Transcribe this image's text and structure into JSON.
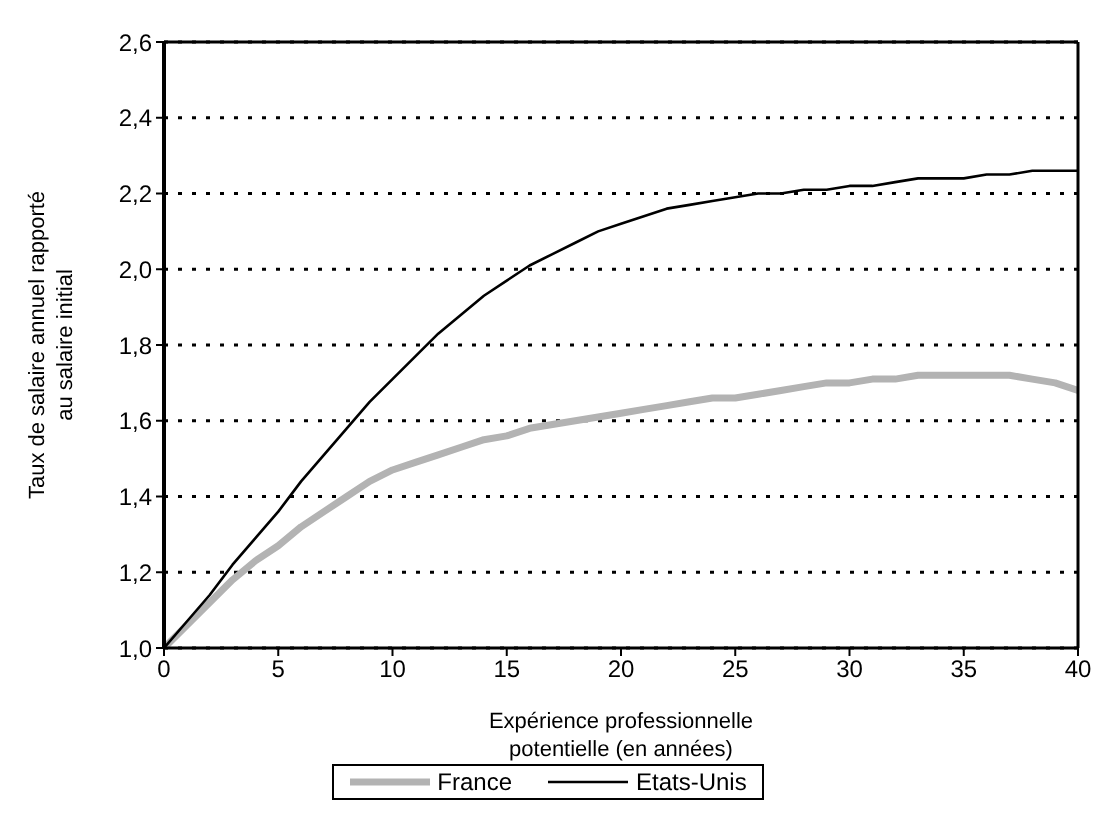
{
  "chart_data": {
    "type": "line",
    "xlabel": "Expérience professionnelle potentielle (en années)",
    "ylabel": "Taux de salaire annuel rapporté au salaire initial",
    "x": [
      0,
      1,
      2,
      3,
      4,
      5,
      6,
      7,
      8,
      9,
      10,
      11,
      12,
      13,
      14,
      15,
      16,
      17,
      18,
      19,
      20,
      21,
      22,
      23,
      24,
      25,
      26,
      27,
      28,
      29,
      30,
      31,
      32,
      33,
      34,
      35,
      36,
      37,
      38,
      39,
      40
    ],
    "series": [
      {
        "name": "France",
        "color": "#b3b3b3",
        "values": [
          1.0,
          1.06,
          1.12,
          1.18,
          1.23,
          1.27,
          1.32,
          1.36,
          1.4,
          1.44,
          1.47,
          1.49,
          1.51,
          1.53,
          1.55,
          1.56,
          1.58,
          1.59,
          1.6,
          1.61,
          1.62,
          1.63,
          1.64,
          1.65,
          1.66,
          1.66,
          1.67,
          1.68,
          1.69,
          1.7,
          1.7,
          1.71,
          1.71,
          1.72,
          1.72,
          1.72,
          1.72,
          1.72,
          1.71,
          1.7,
          1.68
        ]
      },
      {
        "name": "Etats-Unis",
        "color": "#000000",
        "values": [
          1.0,
          1.07,
          1.14,
          1.22,
          1.29,
          1.36,
          1.44,
          1.51,
          1.58,
          1.65,
          1.71,
          1.77,
          1.83,
          1.88,
          1.93,
          1.97,
          2.01,
          2.04,
          2.07,
          2.1,
          2.12,
          2.14,
          2.16,
          2.17,
          2.18,
          2.19,
          2.2,
          2.2,
          2.21,
          2.21,
          2.22,
          2.22,
          2.23,
          2.24,
          2.24,
          2.24,
          2.25,
          2.25,
          2.26,
          2.26,
          2.26
        ]
      }
    ],
    "xlim": [
      0,
      40
    ],
    "xticks": [
      0,
      5,
      10,
      15,
      20,
      25,
      30,
      35,
      40
    ],
    "ylim": [
      1.0,
      2.6
    ],
    "yticks": [
      {
        "value": 1.0,
        "label": "1,0"
      },
      {
        "value": 1.2,
        "label": "1,2"
      },
      {
        "value": 1.4,
        "label": "1,4"
      },
      {
        "value": 1.6,
        "label": "1,6"
      },
      {
        "value": 1.8,
        "label": "1,8"
      },
      {
        "value": 2.0,
        "label": "2,0"
      },
      {
        "value": 2.2,
        "label": "2,2"
      },
      {
        "value": 2.4,
        "label": "2,4"
      },
      {
        "value": 2.6,
        "label": "2,6"
      }
    ],
    "grid": "y",
    "legend": "bottom",
    "marker": "none",
    "line_style": "solid"
  }
}
